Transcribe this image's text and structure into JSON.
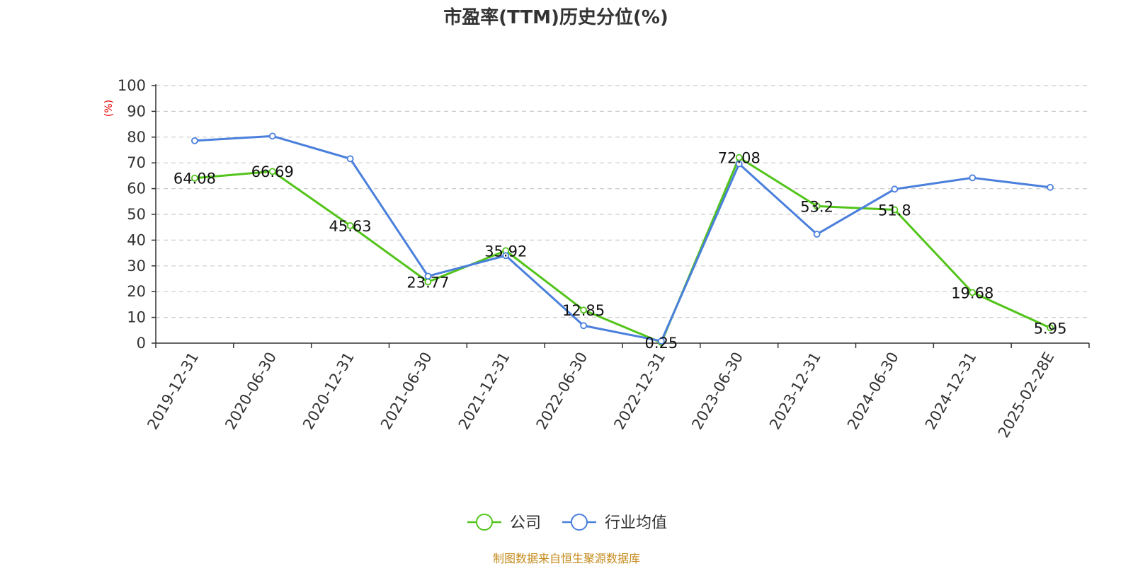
{
  "chart_data": {
    "type": "line",
    "title": "市盈率(TTM)历史分位(%)",
    "ylabel": "(%)",
    "xlabel": "",
    "ylim": [
      0,
      100
    ],
    "yticks": [
      0,
      10,
      20,
      30,
      40,
      50,
      60,
      70,
      80,
      90,
      100
    ],
    "grid": true,
    "legend_position": "bottom-center",
    "categories": [
      "2019-12-31",
      "2020-06-30",
      "2020-12-31",
      "2021-06-30",
      "2021-12-31",
      "2022-06-30",
      "2022-12-31",
      "2023-06-30",
      "2023-12-31",
      "2024-06-30",
      "2024-12-31",
      "2025-02-28E"
    ],
    "series": [
      {
        "name": "公司",
        "color": "#52c41a",
        "values": [
          64.08,
          66.69,
          45.63,
          23.77,
          35.92,
          12.85,
          0.25,
          72.08,
          53.2,
          51.8,
          19.68,
          5.95
        ],
        "labels": [
          "64.08",
          "66.69",
          "45.63",
          "23.77",
          "35.92",
          "12.85",
          "0.25",
          "72.08",
          "53.2",
          "51.8",
          "19.68",
          "5.95"
        ]
      },
      {
        "name": "行业均值",
        "color": "#4a7fdc",
        "values": [
          78.6,
          80.4,
          71.6,
          26.0,
          34.0,
          6.8,
          0.8,
          69.6,
          42.3,
          59.8,
          64.2,
          60.5
        ]
      }
    ],
    "source": "制图数据来自恒生聚源数据库"
  }
}
